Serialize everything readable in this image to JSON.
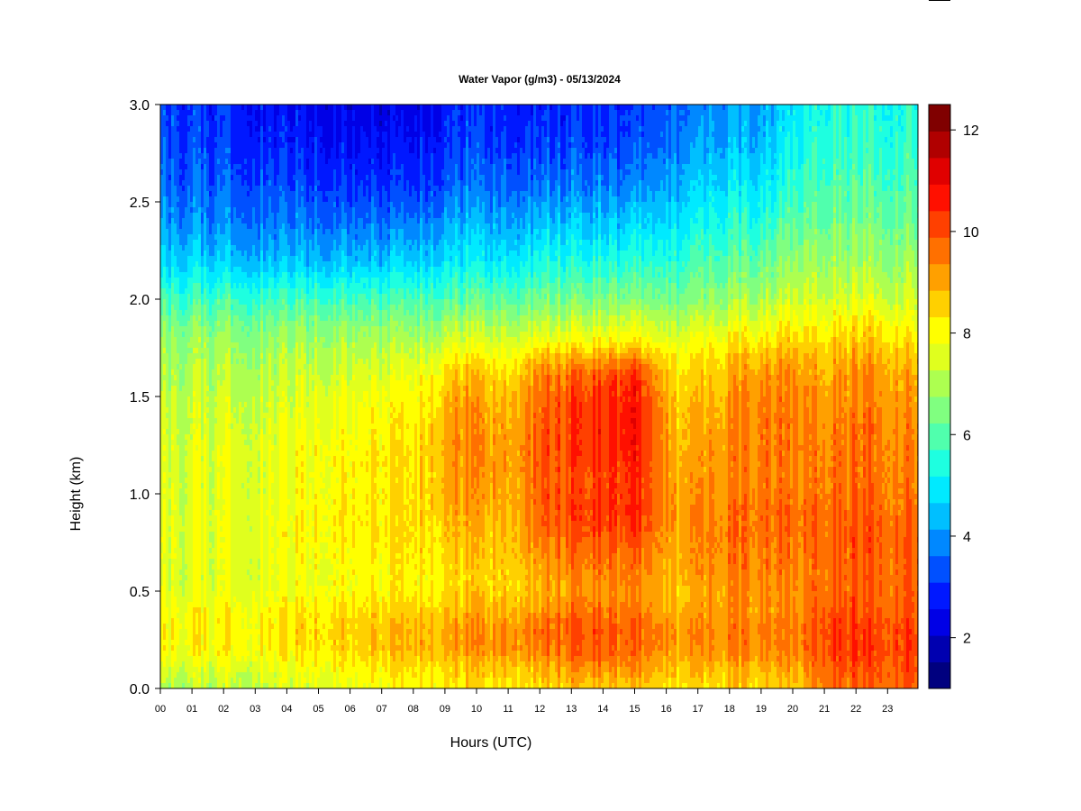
{
  "chart_data": {
    "type": "heatmap",
    "title": "Water Vapor (g/m3) - 05/13/2024",
    "xlabel": "Hours (UTC)",
    "ylabel": "Height (km)",
    "xlim": [
      0,
      23.9
    ],
    "ylim": [
      0.0,
      3.0
    ],
    "x_ticks": [
      "00",
      "01",
      "02",
      "03",
      "04",
      "05",
      "06",
      "07",
      "08",
      "09",
      "10",
      "11",
      "12",
      "13",
      "14",
      "15",
      "16",
      "17",
      "18",
      "19",
      "20",
      "21",
      "22",
      "23"
    ],
    "y_ticks": [
      "0.0",
      "0.5",
      "1.0",
      "1.5",
      "2.0",
      "2.5",
      "3.0"
    ],
    "colorbar": {
      "range": [
        1,
        12.5
      ],
      "ticks": [
        "2",
        "4",
        "6",
        "8",
        "10",
        "12"
      ],
      "tick_values": [
        2,
        4,
        6,
        8,
        10,
        12
      ],
      "colors": [
        "#00007f",
        "#0000b0",
        "#0000e6",
        "#0018ff",
        "#0050ff",
        "#0088ff",
        "#00bfff",
        "#00eaff",
        "#1effe0",
        "#50ffad",
        "#80ff80",
        "#adff50",
        "#e0ff1e",
        "#ffff00",
        "#ffd000",
        "#ffa000",
        "#ff7000",
        "#ff4000",
        "#ff1000",
        "#e00000",
        "#b00000",
        "#800000"
      ]
    },
    "heights_km": [
      0.0,
      0.1,
      0.2,
      0.3,
      0.4,
      0.5,
      0.6,
      0.7,
      0.8,
      0.9,
      1.0,
      1.1,
      1.2,
      1.3,
      1.4,
      1.5,
      1.6,
      1.7,
      1.8,
      1.9,
      2.0,
      2.2,
      2.4,
      2.6,
      2.8,
      3.0
    ],
    "profiles": [
      {
        "hour": 0,
        "values": [
          7.0,
          7.4,
          7.9,
          8.0,
          7.9,
          7.6,
          7.5,
          7.6,
          7.6,
          7.6,
          7.5,
          7.5,
          7.5,
          7.4,
          7.3,
          7.2,
          7.0,
          6.9,
          6.7,
          6.3,
          5.8,
          4.7,
          4.0,
          3.6,
          3.3,
          3.2
        ]
      },
      {
        "hour": 3,
        "values": [
          7.3,
          7.7,
          8.2,
          8.2,
          8.1,
          7.8,
          7.7,
          7.8,
          7.8,
          7.8,
          7.7,
          7.7,
          7.7,
          7.6,
          7.5,
          7.4,
          7.2,
          7.0,
          6.8,
          6.4,
          5.8,
          4.5,
          3.8,
          3.4,
          3.0,
          2.8
        ]
      },
      {
        "hour": 6,
        "values": [
          7.8,
          8.1,
          8.5,
          8.6,
          8.4,
          8.0,
          8.0,
          8.1,
          8.2,
          8.2,
          8.1,
          8.1,
          8.1,
          8.0,
          7.9,
          7.7,
          7.5,
          7.2,
          6.9,
          6.4,
          5.8,
          4.4,
          3.6,
          3.0,
          2.6,
          2.3
        ]
      },
      {
        "hour": 8,
        "values": [
          8.1,
          8.4,
          8.9,
          8.9,
          8.6,
          8.2,
          8.2,
          8.3,
          8.4,
          8.4,
          8.4,
          8.4,
          8.4,
          8.3,
          8.2,
          8.0,
          7.8,
          7.4,
          7.0,
          6.5,
          5.9,
          4.6,
          3.7,
          3.0,
          2.6,
          2.3
        ]
      },
      {
        "hour": 9.4,
        "values": [
          8.3,
          8.6,
          9.1,
          9.2,
          8.8,
          8.5,
          8.5,
          8.7,
          8.8,
          9.0,
          9.2,
          9.2,
          9.4,
          9.4,
          9.3,
          9.1,
          8.8,
          8.2,
          7.4,
          6.8,
          6.1,
          5.0,
          4.3,
          3.6,
          3.2,
          3.0
        ]
      },
      {
        "hour": 11,
        "values": [
          8.2,
          8.6,
          9.2,
          9.2,
          8.8,
          8.5,
          8.5,
          8.6,
          8.7,
          8.8,
          8.9,
          9.0,
          9.0,
          9.0,
          8.9,
          8.7,
          8.4,
          7.9,
          7.3,
          6.7,
          6.0,
          4.9,
          4.1,
          3.4,
          3.0,
          2.8
        ]
      },
      {
        "hour": 12,
        "values": [
          8.4,
          8.8,
          9.5,
          9.6,
          9.2,
          8.9,
          9.0,
          9.3,
          9.6,
          9.8,
          9.8,
          9.8,
          9.9,
          9.8,
          9.7,
          9.6,
          9.4,
          8.8,
          7.7,
          7.0,
          6.3,
          5.3,
          4.4,
          3.6,
          3.1,
          2.8
        ]
      },
      {
        "hour": 13.5,
        "values": [
          8.8,
          9.4,
          10.0,
          10.1,
          9.7,
          9.4,
          9.6,
          9.8,
          10.1,
          10.3,
          10.2,
          10.1,
          10.3,
          10.4,
          10.4,
          10.3,
          10.0,
          9.0,
          7.9,
          7.2,
          6.5,
          5.4,
          4.5,
          3.8,
          3.3,
          3.0
        ]
      },
      {
        "hour": 15,
        "values": [
          8.6,
          9.1,
          9.6,
          9.7,
          9.4,
          9.2,
          9.4,
          9.7,
          10.0,
          10.3,
          10.4,
          10.3,
          10.5,
          10.6,
          10.6,
          10.5,
          10.3,
          9.2,
          8.0,
          7.3,
          6.5,
          5.4,
          4.5,
          3.7,
          3.2,
          2.9
        ]
      },
      {
        "hour": 16.3,
        "values": [
          8.4,
          8.8,
          9.2,
          9.3,
          9.0,
          8.8,
          8.9,
          9.0,
          9.1,
          9.2,
          9.1,
          9.0,
          9.0,
          8.9,
          8.8,
          8.6,
          8.4,
          8.2,
          7.6,
          7.0,
          6.4,
          5.6,
          4.9,
          4.3,
          3.8,
          3.6
        ]
      },
      {
        "hour": 17.5,
        "values": [
          8.5,
          8.9,
          9.4,
          9.5,
          9.2,
          9.2,
          9.4,
          9.5,
          9.6,
          9.5,
          9.4,
          9.3,
          9.3,
          9.2,
          9.1,
          8.9,
          8.7,
          8.5,
          8.0,
          7.4,
          6.8,
          6.0,
          5.4,
          4.8,
          4.3,
          4.0
        ]
      },
      {
        "hour": 19,
        "values": [
          8.6,
          9.0,
          9.5,
          9.6,
          9.4,
          9.4,
          9.6,
          9.7,
          9.8,
          9.8,
          9.7,
          9.6,
          9.7,
          9.7,
          9.7,
          9.6,
          9.4,
          9.0,
          8.3,
          7.7,
          7.1,
          6.3,
          5.6,
          5.0,
          4.5,
          4.2
        ]
      },
      {
        "hour": 20.2,
        "values": [
          8.5,
          8.9,
          9.3,
          9.4,
          9.2,
          9.2,
          9.3,
          9.4,
          9.5,
          9.5,
          9.4,
          9.3,
          9.4,
          9.4,
          9.3,
          9.2,
          9.1,
          8.8,
          8.3,
          7.8,
          7.3,
          6.6,
          6.0,
          5.5,
          5.1,
          4.9
        ]
      },
      {
        "hour": 21,
        "values": [
          9.6,
          9.9,
          10.2,
          10.2,
          10.0,
          9.8,
          9.7,
          9.8,
          9.8,
          9.7,
          9.6,
          9.5,
          9.5,
          9.4,
          9.3,
          9.2,
          9.0,
          8.8,
          8.4,
          7.9,
          7.4,
          6.8,
          6.3,
          5.9,
          5.6,
          5.4
        ]
      },
      {
        "hour": 22.5,
        "values": [
          9.8,
          10.1,
          10.3,
          10.2,
          10.0,
          9.9,
          9.9,
          10.0,
          10.0,
          9.9,
          9.8,
          9.7,
          9.7,
          9.7,
          9.6,
          9.5,
          9.4,
          9.1,
          8.7,
          8.2,
          7.6,
          6.9,
          6.4,
          6.0,
          5.7,
          5.5
        ]
      },
      {
        "hour": 23.9,
        "values": [
          9.9,
          10.1,
          10.2,
          10.1,
          9.9,
          9.8,
          9.7,
          9.7,
          9.7,
          9.6,
          9.5,
          9.4,
          9.4,
          9.3,
          9.2,
          9.1,
          8.9,
          8.6,
          8.2,
          7.8,
          7.3,
          6.8,
          6.3,
          5.9,
          5.6,
          5.4
        ]
      }
    ]
  }
}
